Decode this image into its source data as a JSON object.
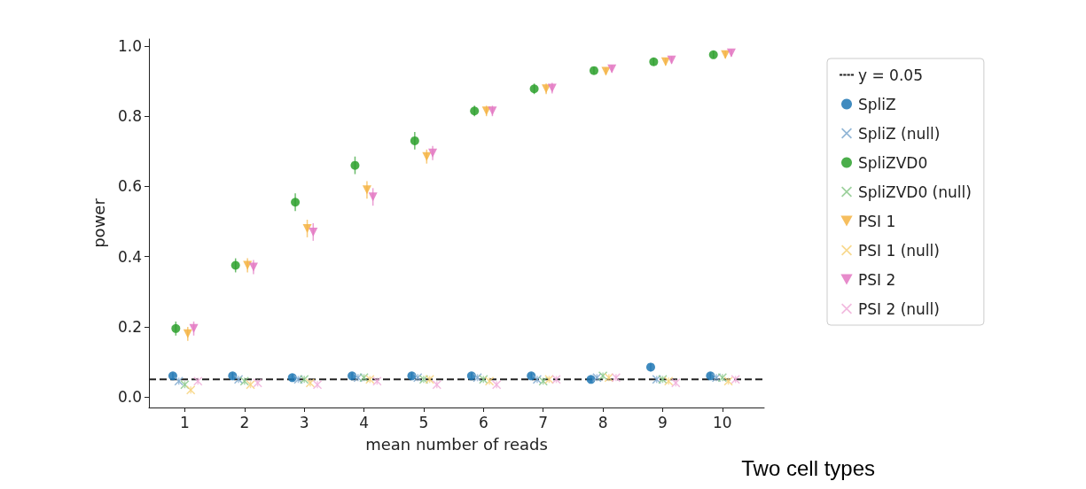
{
  "chart_data": {
    "type": "scatter",
    "xlabel": "mean number of reads",
    "ylabel": "power",
    "annotations": [
      "Two cell types"
    ],
    "xlim": [
      0.4,
      10.7
    ],
    "xticks": [
      1,
      2,
      3,
      4,
      5,
      6,
      7,
      8,
      9,
      10
    ],
    "ylim": [
      -0.03,
      1.02
    ],
    "yticks": [
      {
        "value": 0,
        "label": "0.0"
      },
      0.2,
      0.4,
      0.6,
      0.8,
      {
        "value": 1,
        "label": "1.0"
      }
    ],
    "grid": false,
    "legend": "right",
    "ref_lines": [
      {
        "axis": "y",
        "value": 0.05,
        "label": "y = 0.05",
        "color": "#222222",
        "line_style": "dashed"
      }
    ],
    "series": [
      {
        "name": "SpliZ",
        "color": "#1f77b4",
        "marker": "circle",
        "x": [
          0.8,
          1.8,
          2.8,
          3.8,
          4.8,
          5.8,
          6.8,
          7.8,
          8.8,
          9.8
        ],
        "values": [
          0.06,
          0.06,
          0.055,
          0.06,
          0.06,
          0.06,
          0.06,
          0.05,
          0.085,
          0.06
        ],
        "errors": [
          0.01,
          0.01,
          0.01,
          0.01,
          0.01,
          0.01,
          0.01,
          0.01,
          0.012,
          0.01
        ]
      },
      {
        "name": "SpliZ (null)",
        "color": "#7fa9cf",
        "marker": "cross",
        "x": [
          0.9,
          1.9,
          2.9,
          3.9,
          4.9,
          5.9,
          6.9,
          7.9,
          8.9,
          9.9
        ],
        "values": [
          0.045,
          0.05,
          0.05,
          0.055,
          0.055,
          0.055,
          0.05,
          0.055,
          0.05,
          0.055
        ],
        "errors": [
          0.01,
          0.01,
          0.01,
          0.01,
          0.01,
          0.01,
          0.01,
          0.01,
          0.01,
          0.01
        ]
      },
      {
        "name": "SpliZVD0",
        "color": "#2ca02c",
        "marker": "circle",
        "x": [
          0.85,
          1.85,
          2.85,
          3.85,
          4.85,
          5.85,
          6.85,
          7.85,
          8.85,
          9.85
        ],
        "values": [
          0.195,
          0.375,
          0.555,
          0.66,
          0.73,
          0.815,
          0.878,
          0.93,
          0.955,
          0.975
        ],
        "errors": [
          0.02,
          0.02,
          0.025,
          0.025,
          0.025,
          0.015,
          0.015,
          0.01,
          0.01,
          0.01
        ]
      },
      {
        "name": "SpliZVD0 (null)",
        "color": "#8cc98c",
        "marker": "cross",
        "x": [
          1,
          2,
          3,
          4,
          5,
          6,
          7,
          8,
          9,
          10
        ],
        "values": [
          0.035,
          0.045,
          0.05,
          0.055,
          0.05,
          0.05,
          0.045,
          0.06,
          0.05,
          0.055
        ],
        "errors": [
          0.01,
          0.01,
          0.01,
          0.01,
          0.01,
          0.01,
          0.01,
          0.01,
          0.01,
          0.01
        ]
      },
      {
        "name": "PSI 1",
        "color": "#f5b342",
        "marker": "triangle",
        "x": [
          1.05,
          2.05,
          3.05,
          4.05,
          5.05,
          6.05,
          7.05,
          8.05,
          9.05,
          10.05
        ],
        "values": [
          0.18,
          0.375,
          0.48,
          0.59,
          0.685,
          0.815,
          0.878,
          0.928,
          0.955,
          0.975
        ],
        "errors": [
          0.02,
          0.02,
          0.025,
          0.025,
          0.02,
          0.015,
          0.015,
          0.01,
          0.01,
          0.01
        ]
      },
      {
        "name": "PSI 1 (null)",
        "color": "#f7d27a",
        "marker": "cross",
        "x": [
          1.1,
          2.1,
          3.1,
          4.1,
          5.1,
          6.1,
          7.1,
          8.1,
          9.1,
          10.1
        ],
        "values": [
          0.02,
          0.035,
          0.04,
          0.05,
          0.05,
          0.045,
          0.05,
          0.055,
          0.045,
          0.045
        ],
        "errors": [
          0.01,
          0.01,
          0.01,
          0.01,
          0.01,
          0.01,
          0.01,
          0.01,
          0.01,
          0.01
        ]
      },
      {
        "name": "PSI 2",
        "color": "#e377c2",
        "marker": "triangle",
        "x": [
          1.15,
          2.15,
          3.15,
          4.15,
          5.15,
          6.15,
          7.15,
          8.15,
          9.15,
          10.15
        ],
        "values": [
          0.195,
          0.37,
          0.47,
          0.57,
          0.695,
          0.815,
          0.88,
          0.935,
          0.96,
          0.98
        ],
        "errors": [
          0.02,
          0.02,
          0.025,
          0.025,
          0.02,
          0.015,
          0.015,
          0.01,
          0.01,
          0.01
        ]
      },
      {
        "name": "PSI 2 (null)",
        "color": "#f0aed9",
        "marker": "cross",
        "x": [
          1.22,
          2.22,
          3.22,
          4.22,
          5.22,
          6.22,
          7.22,
          8.22,
          9.22,
          10.22
        ],
        "values": [
          0.045,
          0.04,
          0.035,
          0.045,
          0.035,
          0.035,
          0.05,
          0.055,
          0.04,
          0.05
        ],
        "errors": [
          0.01,
          0.01,
          0.01,
          0.01,
          0.01,
          0.01,
          0.01,
          0.01,
          0.01,
          0.01
        ]
      }
    ]
  }
}
